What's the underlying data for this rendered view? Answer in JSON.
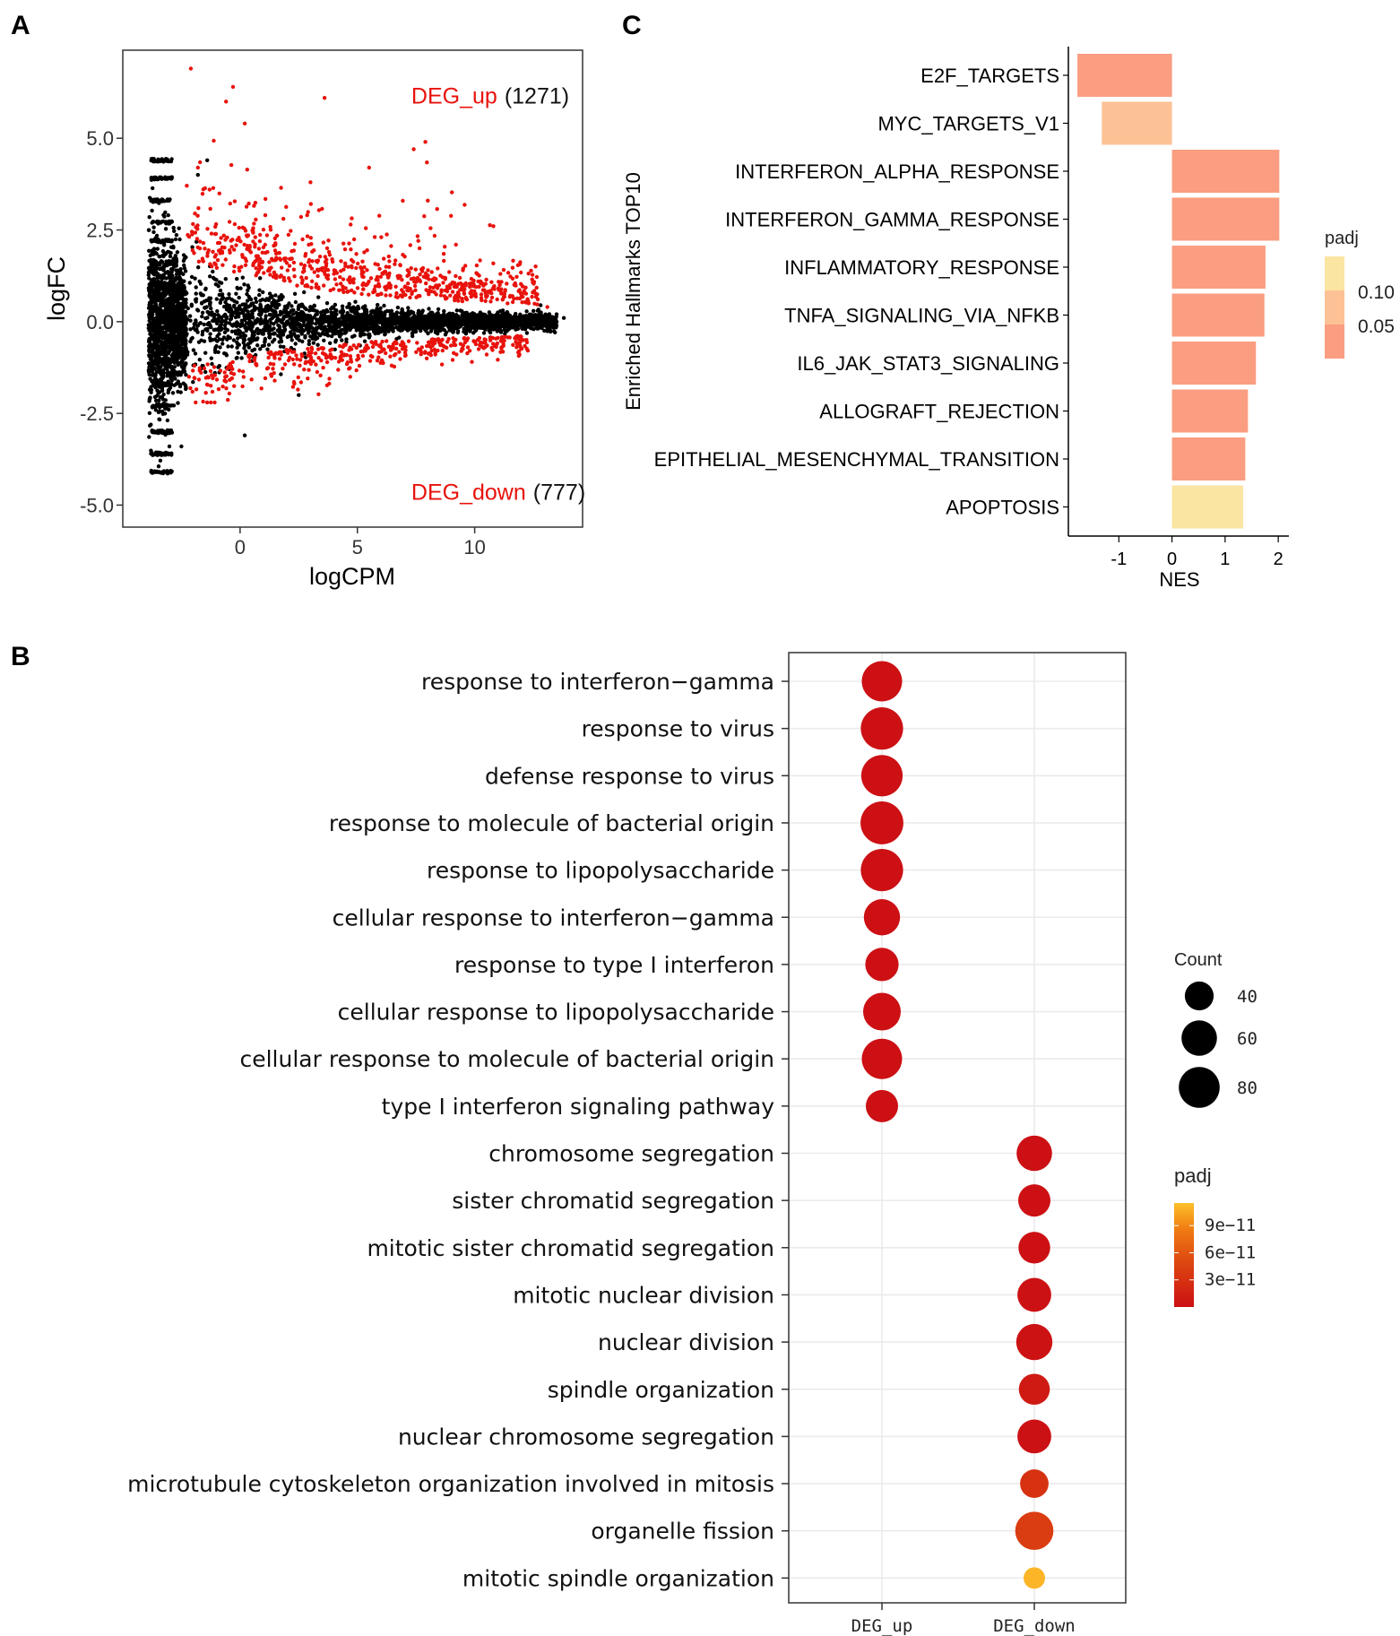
{
  "panel_labels": {
    "a": "A",
    "b": "B",
    "c": "C"
  },
  "chart_data": [
    {
      "id": "A",
      "type": "scatter",
      "title": "",
      "xlabel": "logCPM",
      "ylabel": "logFC",
      "xlim": [
        -5,
        14.6
      ],
      "ylim": [
        -5.6,
        7.4
      ],
      "xticks": [
        "0",
        "5",
        "10"
      ],
      "yticks": [
        "5.0",
        "2.5",
        "0.0",
        "-2.5",
        "-5.0"
      ],
      "grid": false,
      "series": [
        {
          "name": "non-DEG",
          "color": "#000000"
        },
        {
          "name": "DEG",
          "color": "#e8120c"
        }
      ],
      "annotations": [
        {
          "label": "DEG_up",
          "count": "(1271)",
          "x": 7.3,
          "y": 5.95
        },
        {
          "label": "DEG_down",
          "count": "(777)",
          "x": 7.3,
          "y": -4.85
        }
      ]
    },
    {
      "id": "C",
      "type": "bar",
      "orientation": "horizontal",
      "title": "",
      "xlabel": "NES",
      "ylabel": "Enriched Hallmarks TOP10",
      "xlim": [
        -1.95,
        2.2
      ],
      "xticks": [
        "-1",
        "0",
        "1",
        "2"
      ],
      "categories": [
        "E2F_TARGETS",
        "MYC_TARGETS_V1",
        "INTERFERON_ALPHA_RESPONSE",
        "INTERFERON_GAMMA_RESPONSE",
        "INFLAMMATORY_RESPONSE",
        "TNFA_SIGNALING_VIA_NFKB",
        "IL6_JAK_STAT3_SIGNALING",
        "ALLOGRAFT_REJECTION",
        "EPITHELIAL_MESENCHYMAL_TRANSITION",
        "APOPTOSIS"
      ],
      "values": [
        -1.78,
        -1.32,
        2.02,
        2.02,
        1.76,
        1.74,
        1.58,
        1.43,
        1.38,
        1.34
      ],
      "padj_bin": [
        "lt005",
        "lt010",
        "lt005",
        "lt005",
        "lt005",
        "lt005",
        "lt005",
        "lt005",
        "lt005",
        "ge010"
      ],
      "legend": {
        "title": "padj",
        "labels": [
          "0.10",
          "0.05"
        ],
        "colors": {
          "ge010": "#fbe5a2",
          "lt010": "#fcc295",
          "lt005": "#fa9d80"
        }
      }
    },
    {
      "id": "B",
      "type": "dot",
      "title": "",
      "xlabel": "",
      "ylabel": "",
      "x_categories": [
        "DEG_up",
        "DEG_down"
      ],
      "grid": true,
      "categories": [
        "response to interferon−gamma",
        "response to virus",
        "defense response to virus",
        "response to molecule of bacterial origin",
        "response to lipopolysaccharide",
        "cellular response to interferon−gamma",
        "response to type I interferon",
        "cellular response to lipopolysaccharide",
        "cellular response to molecule of bacterial origin",
        "type I interferon signaling pathway",
        "chromosome segregation",
        "sister chromatid segregation",
        "mitotic sister chromatid segregation",
        "mitotic nuclear division",
        "nuclear division",
        "spindle organization",
        "nuclear chromosome segregation",
        "microtubule cytoskeleton organization involved in mitosis",
        "organelle fission",
        "mitotic spindle organization"
      ],
      "group": [
        "DEG_up",
        "DEG_up",
        "DEG_up",
        "DEG_up",
        "DEG_up",
        "DEG_up",
        "DEG_up",
        "DEG_up",
        "DEG_up",
        "DEG_up",
        "DEG_down",
        "DEG_down",
        "DEG_down",
        "DEG_down",
        "DEG_down",
        "DEG_down",
        "DEG_down",
        "DEG_down",
        "DEG_down",
        "DEG_down"
      ],
      "count": [
        78,
        86,
        82,
        88,
        86,
        63,
        53,
        68,
        78,
        50,
        60,
        50,
        48,
        55,
        63,
        46,
        55,
        39,
        70,
        22
      ],
      "padj": [
        1e-24,
        1e-24,
        1e-24,
        1e-24,
        1e-24,
        1e-22,
        1e-20,
        1e-21,
        1e-21,
        1e-19,
        1e-14,
        5e-14,
        8e-14,
        6e-13,
        2e-12,
        9e-12,
        1e-12,
        3e-11,
        4e-11,
        1.1e-10
      ],
      "legend": {
        "count_title": "Count",
        "count_labels": [
          "40",
          "60",
          "80"
        ],
        "count_values": [
          40,
          60,
          80
        ],
        "padj_title": "padj",
        "padj_labels": [
          "9e−11",
          "6e−11",
          "3e−11"
        ],
        "padj_values": [
          9e-11,
          6e-11,
          3e-11
        ],
        "padj_range": [
          0,
          1.15e-10
        ]
      }
    }
  ]
}
